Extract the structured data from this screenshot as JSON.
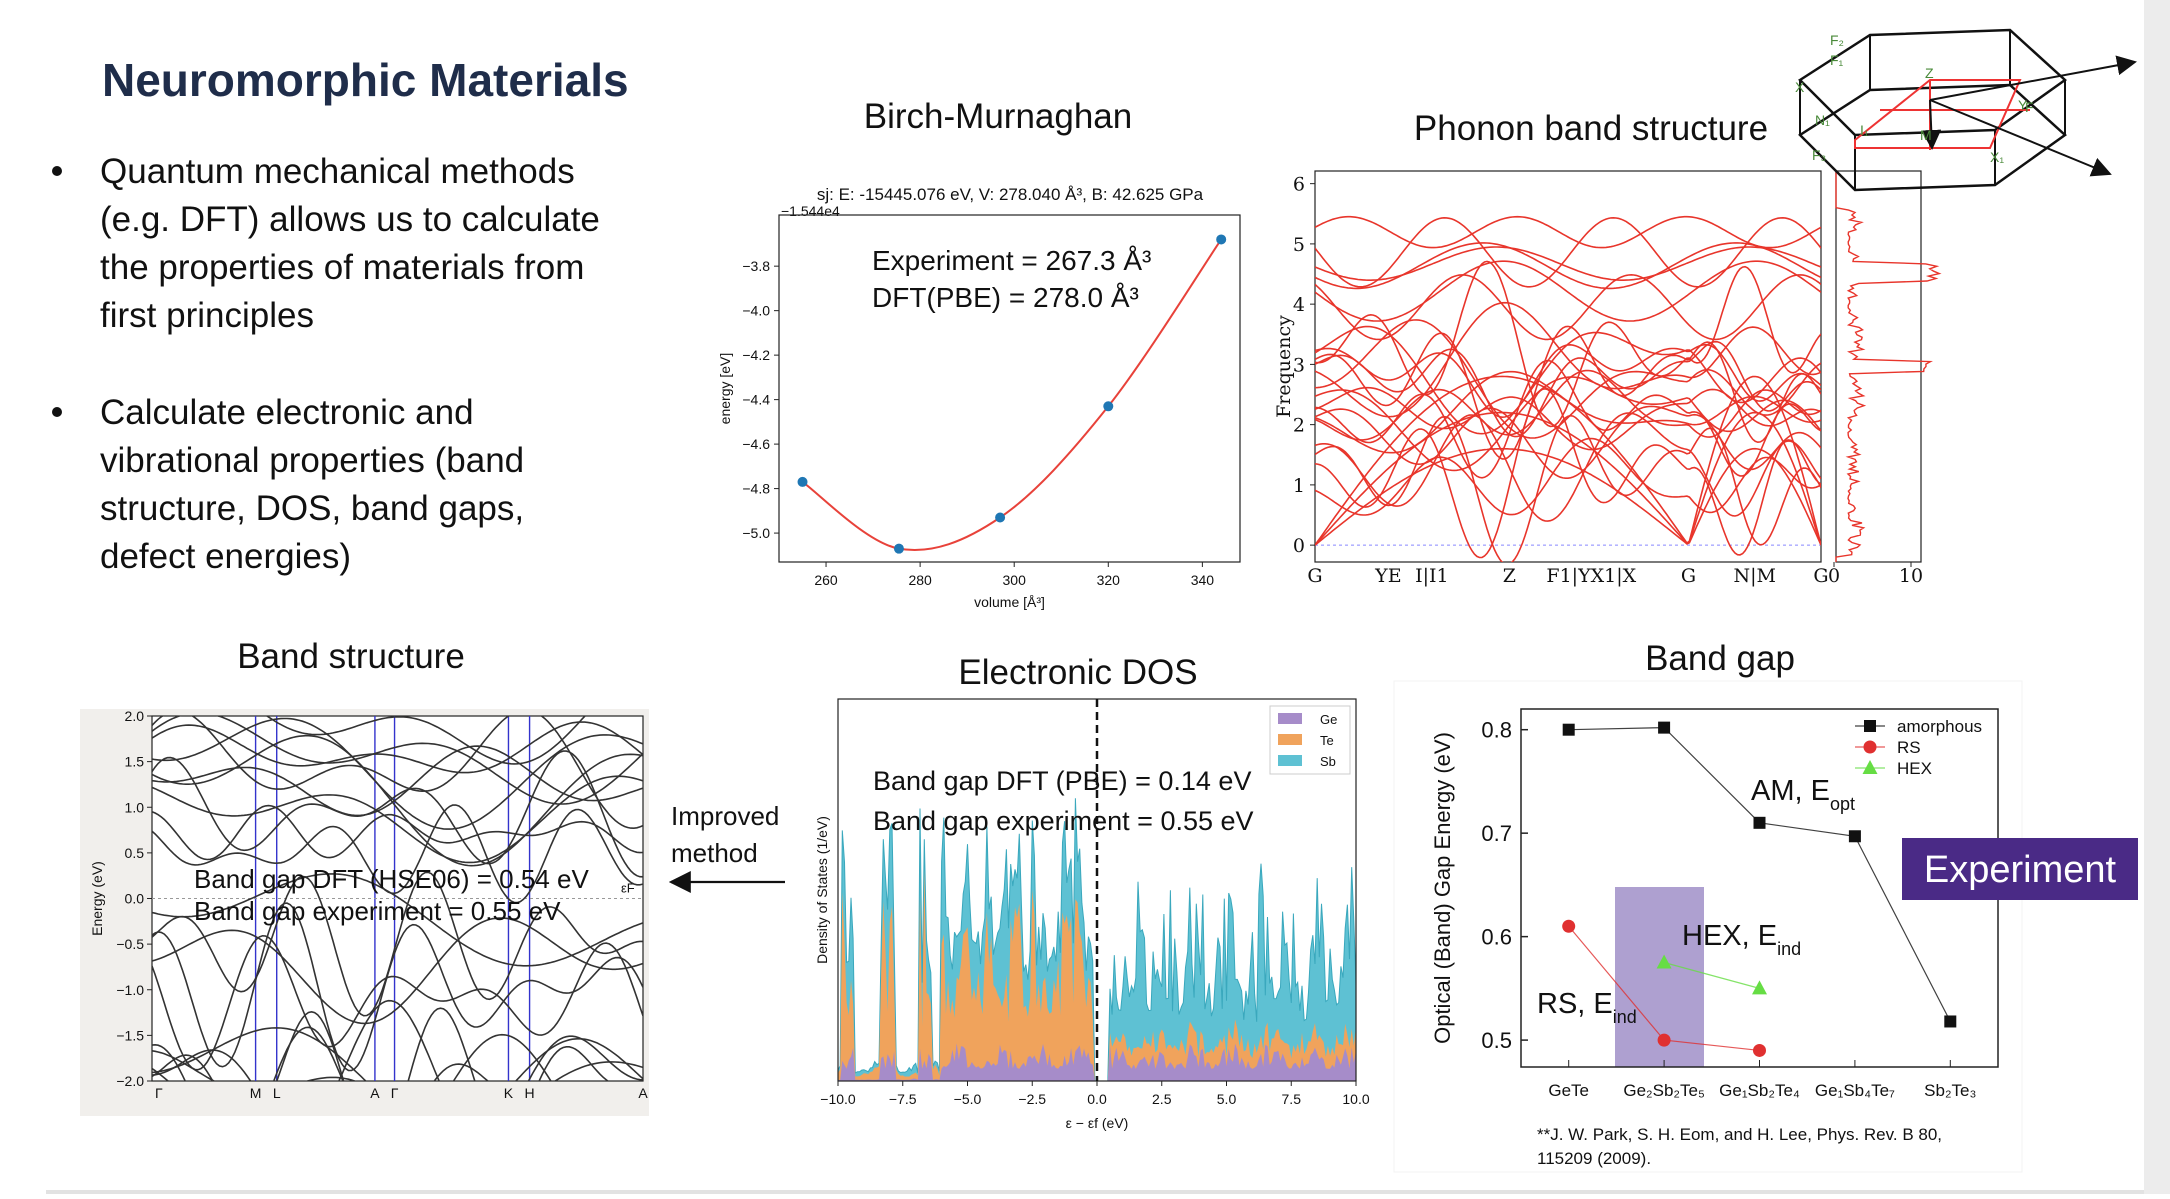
{
  "header": {
    "title": "Neuromorphic Materials"
  },
  "bullets": [
    [
      "Quantum mechanical methods",
      "(e.g. DFT) allows us to calculate",
      "the properties of materials from",
      "first principles"
    ],
    [
      "Calculate electronic and",
      "vibrational properties (band",
      "structure, DOS, band gaps,",
      "defect energies)"
    ]
  ],
  "arrow_label": [
    "Improved",
    "method"
  ],
  "bz_labels": [
    "F₂",
    "F₁",
    "X",
    "Z",
    "N₁",
    "I₁",
    "M",
    "Y",
    "F₃",
    "X₁",
    "F"
  ],
  "chart_data": [
    {
      "type": "scatter",
      "title": "Birch-Murnaghan",
      "subtitle": "sj: E: -15445.076 eV, V: 278.040 Å³, B: 42.625 GPa",
      "offset_label": "−1.544e4",
      "annotations": [
        "Experiment = 267.3 Å³",
        "DFT(PBE) = 278.0 Å³"
      ],
      "x_label": "volume [Å³]",
      "y_label": "energy [eV]",
      "x": [
        255,
        275.5,
        297,
        320,
        344
      ],
      "values": [
        -4.77,
        -5.07,
        -4.93,
        -4.43,
        -3.68
      ],
      "color": "#1f77b4",
      "fit_color": "#e8423a",
      "xlim": [
        250,
        348
      ],
      "xticks": [
        260,
        280,
        300,
        320,
        340
      ],
      "ylim": [
        -5.13,
        -3.57
      ],
      "yticks": [
        {
          "value": -3.8,
          "label": "−3.8"
        },
        {
          "value": -4.0,
          "label": "−4.0"
        },
        {
          "value": -4.2,
          "label": "−4.2"
        },
        {
          "value": -4.4,
          "label": "−4.4"
        },
        {
          "value": -4.6,
          "label": "−4.6"
        },
        {
          "value": -4.8,
          "label": "−4.8"
        },
        {
          "value": -5.0,
          "label": "−5.0"
        }
      ]
    },
    {
      "type": "phonon",
      "title": "Phonon band structure",
      "y_label": "Frequency",
      "categories": [
        "G",
        "YE",
        "I|I1",
        "Z",
        "F1|YX1|X",
        "G",
        "N|M",
        "G"
      ],
      "ylim": [
        -0.28,
        6.21
      ],
      "yticks": [
        0,
        1,
        2,
        3,
        4,
        5,
        6
      ],
      "dos_xticks": [
        0,
        10
      ],
      "color": "#e8352b"
    },
    {
      "type": "bands",
      "title": "Band structure",
      "y_label": "Energy (eV)",
      "categories": [
        "Γ",
        "M",
        "L",
        "A",
        "Γ",
        "K",
        "H",
        "A"
      ],
      "fermi_label": "εF",
      "ylim": [
        -2,
        2
      ],
      "yticks": [
        {
          "value": 2,
          "label": "2.0"
        },
        1.5,
        {
          "value": 1,
          "label": "1.0"
        },
        0.5,
        {
          "value": 0,
          "label": "0.0"
        },
        {
          "value": -0.5,
          "label": "−0.5"
        },
        {
          "value": -1,
          "label": "−1.0"
        },
        {
          "value": -1.5,
          "label": "−1.5"
        },
        {
          "value": -2,
          "label": "−2.0"
        }
      ],
      "annotations": [
        "Band gap DFT (HSE06) = 0.54 eV",
        "Band gap experiment = 0.55 eV"
      ]
    },
    {
      "type": "area",
      "title": "Electronic DOS",
      "x_label": "ε − εf (eV)",
      "y_label": "Density of States (1/eV)",
      "xlim": [
        -10,
        10
      ],
      "xticks": [
        {
          "value": -10,
          "label": "−10.0"
        },
        {
          "value": -7.5,
          "label": "−7.5"
        },
        {
          "value": -5,
          "label": "−5.0"
        },
        {
          "value": -2.5,
          "label": "−2.5"
        },
        {
          "value": 0,
          "label": "0.0"
        },
        {
          "value": 2.5,
          "label": "2.5"
        },
        {
          "value": 5,
          "label": "5.0"
        },
        {
          "value": 7.5,
          "label": "7.5"
        },
        {
          "value": 10,
          "label": "10.0"
        }
      ],
      "series": [
        {
          "name": "Ge",
          "color": "#a68cc9"
        },
        {
          "name": "Te",
          "color": "#f0a35c"
        },
        {
          "name": "Sb",
          "color": "#5ec1d3"
        }
      ],
      "annotations": [
        "Band gap DFT (PBE) = 0.14 eV",
        "Band gap experiment = 0.55 eV"
      ]
    },
    {
      "type": "line",
      "title": "Band gap",
      "y_label": "Optical (Band) Gap Energy (eV)",
      "categories": [
        "GeTe",
        "Ge₂Sb₂Te₅",
        "Ge₁Sb₂Te₄",
        "Ge₁Sb₄Te₇",
        "Sb₂Te₃"
      ],
      "ylim": [
        0.474,
        0.82
      ],
      "yticks": [
        0.5,
        0.6,
        0.7,
        0.8
      ],
      "legend": "upper right",
      "series": [
        {
          "name": "amorphous",
          "color": "#111111",
          "marker": "square",
          "values": [
            0.8,
            0.802,
            0.71,
            0.697,
            0.518
          ]
        },
        {
          "name": "RS",
          "color": "#e03030",
          "marker": "circle",
          "values": [
            0.61,
            0.5,
            0.49,
            null,
            null
          ]
        },
        {
          "name": "HEX",
          "color": "#66dd44",
          "marker": "triangle",
          "values": [
            null,
            0.575,
            0.55,
            null,
            null
          ]
        }
      ],
      "annotations": [
        {
          "text": "AM, E",
          "sub": "opt"
        },
        {
          "text": "HEX, E",
          "sub": "ind"
        },
        {
          "text": "RS, E",
          "sub": "ind"
        }
      ],
      "badge": "Experiment",
      "citation": [
        "**J. W. Park, S. H. Eom, and H. Lee, Phys. Rev. B 80,",
        "115209 (2009)."
      ]
    }
  ]
}
